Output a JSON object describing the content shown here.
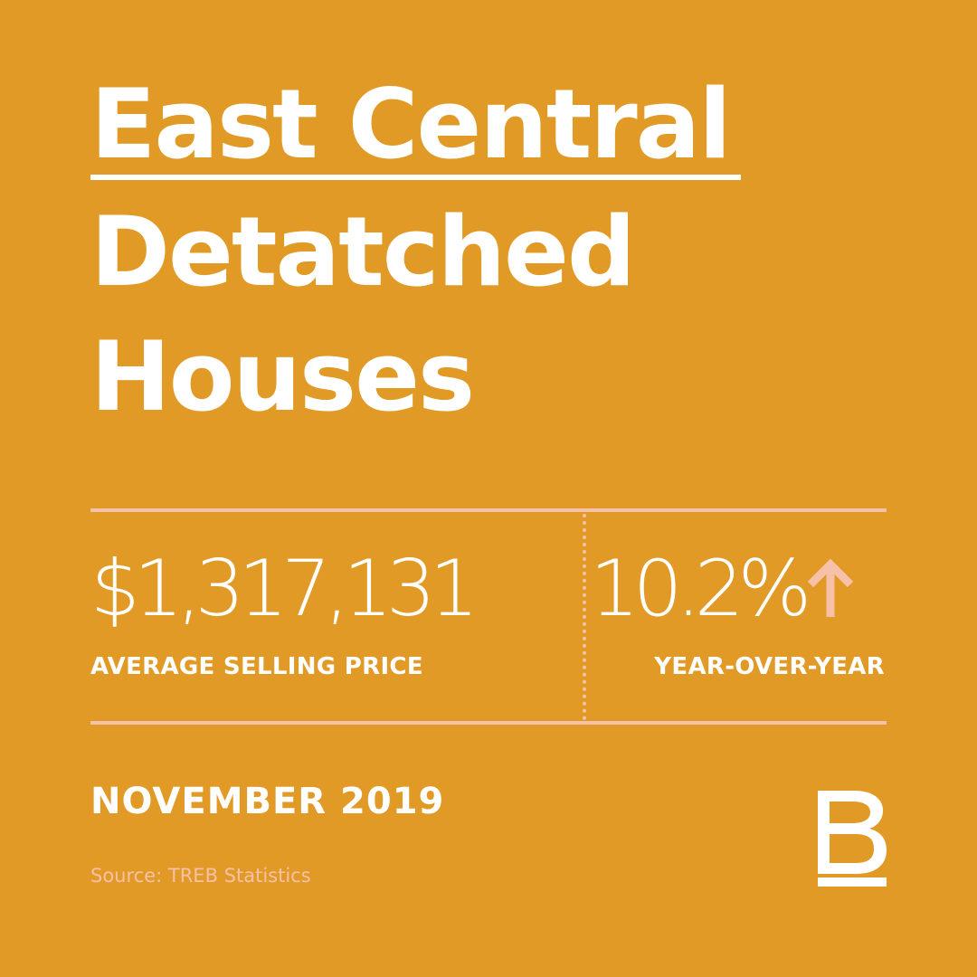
{
  "colors": {
    "background": "#E29A26",
    "text": "#FFFFFF",
    "accent": "#F6C1A8"
  },
  "headline": {
    "line1": "East Central",
    "line2": "Detatched",
    "line3": "Houses"
  },
  "stats": {
    "price": "$1,317,131",
    "price_label": "AVERAGE SELLING PRICE",
    "change": "10.2%",
    "change_label": "YEAR-OVER-YEAR",
    "change_direction_icon": "arrow-up-icon"
  },
  "footer": {
    "date": "NOVEMBER 2019",
    "source": "Source: TREB Statistics"
  },
  "brand": {
    "logo_icon": "b-monogram-icon",
    "logo_letter": "B"
  }
}
